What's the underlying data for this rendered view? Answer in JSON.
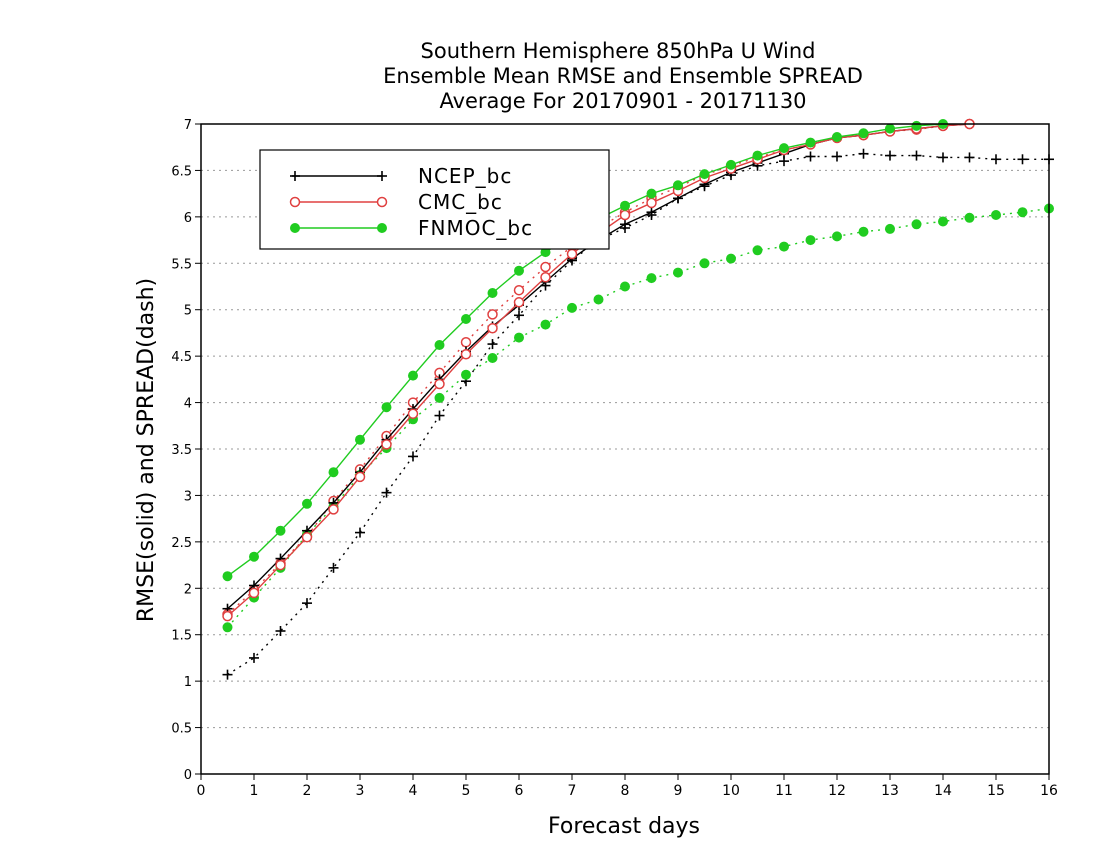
{
  "chart_data": {
    "type": "line",
    "title": [
      "Southern Hemisphere 850hPa U Wind",
      "Ensemble Mean RMSE and Ensemble SPREAD",
      "Average For 20170901 - 20171130"
    ],
    "xlabel": "Forecast days",
    "ylabel": "RMSE(solid) and SPREAD(dash)",
    "xlim": [
      0,
      16
    ],
    "ylim": [
      0,
      7
    ],
    "xticks": [
      "0",
      "1",
      "2",
      "3",
      "4",
      "5",
      "6",
      "7",
      "8",
      "9",
      "10",
      "11",
      "12",
      "13",
      "14",
      "15",
      "16"
    ],
    "yticks": [
      "0",
      "0.5",
      "1",
      "1.5",
      "2",
      "2.5",
      "3",
      "3.5",
      "4",
      "4.5",
      "5",
      "5.5",
      "6",
      "6.5",
      "7"
    ],
    "grid": "horizontal dotted",
    "legend_position": "top-left",
    "x": [
      0.5,
      1,
      1.5,
      2,
      2.5,
      3,
      3.5,
      4,
      4.5,
      5,
      5.5,
      6,
      6.5,
      7,
      7.5,
      8,
      8.5,
      9,
      9.5,
      10,
      10.5,
      11,
      11.5,
      12,
      12.5,
      13,
      13.5,
      14,
      14.5,
      15,
      15.5,
      16
    ],
    "series": [
      {
        "name": "NCEP_bc",
        "color": "#000000",
        "marker": "plus",
        "rmse": [
          1.78,
          2.03,
          2.32,
          2.62,
          2.92,
          3.25,
          3.6,
          3.93,
          4.25,
          4.55,
          4.82,
          5.05,
          5.3,
          5.55,
          5.75,
          5.92,
          6.05,
          6.2,
          6.35,
          6.48,
          6.58,
          6.68,
          6.78,
          6.85,
          6.88,
          6.92,
          6.95,
          6.98,
          7.0
        ],
        "spread": [
          1.07,
          1.25,
          1.54,
          1.84,
          2.22,
          2.6,
          3.03,
          3.42,
          3.86,
          4.23,
          4.63,
          4.94,
          5.26,
          5.53,
          5.75,
          5.88,
          6.02,
          6.2,
          6.33,
          6.45,
          6.55,
          6.6,
          6.65,
          6.65,
          6.68,
          6.66,
          6.66,
          6.64,
          6.64,
          6.62,
          6.62,
          6.62
        ]
      },
      {
        "name": "CMC_bc",
        "color": "#e04040",
        "marker": "circle-open",
        "rmse": [
          1.7,
          1.95,
          2.25,
          2.55,
          2.85,
          3.2,
          3.55,
          3.88,
          4.2,
          4.52,
          4.8,
          5.08,
          5.35,
          5.6,
          5.82,
          6.02,
          6.15,
          6.28,
          6.42,
          6.52,
          6.62,
          6.72,
          6.78,
          6.85,
          6.88,
          6.92,
          6.95,
          6.98,
          7.0
        ],
        "spread": [
          1.72,
          1.98,
          2.27,
          2.56,
          2.94,
          3.28,
          3.64,
          4.0,
          4.32,
          4.65,
          4.95,
          5.21,
          5.46,
          5.68,
          5.88,
          6.05,
          6.2,
          6.32,
          6.45,
          6.55,
          6.64,
          6.72,
          6.78,
          6.85,
          6.88,
          6.92,
          6.94,
          6.98,
          7.0
        ]
      },
      {
        "name": "FNMOC_bc",
        "color": "#20cc20",
        "marker": "circle-filled",
        "rmse": [
          2.13,
          2.34,
          2.62,
          2.91,
          3.25,
          3.6,
          3.95,
          4.29,
          4.62,
          4.9,
          5.18,
          5.42,
          5.62,
          5.8,
          5.98,
          6.12,
          6.25,
          6.34,
          6.46,
          6.56,
          6.66,
          6.74,
          6.8,
          6.86,
          6.9,
          6.95,
          6.98,
          7.0
        ],
        "spread": [
          1.58,
          1.9,
          2.22,
          2.58,
          2.88,
          3.22,
          3.51,
          3.82,
          4.05,
          4.3,
          4.48,
          4.7,
          4.84,
          5.02,
          5.11,
          5.25,
          5.34,
          5.4,
          5.5,
          5.55,
          5.64,
          5.68,
          5.75,
          5.79,
          5.84,
          5.87,
          5.92,
          5.95,
          5.99,
          6.02,
          6.05,
          6.09
        ]
      }
    ]
  }
}
